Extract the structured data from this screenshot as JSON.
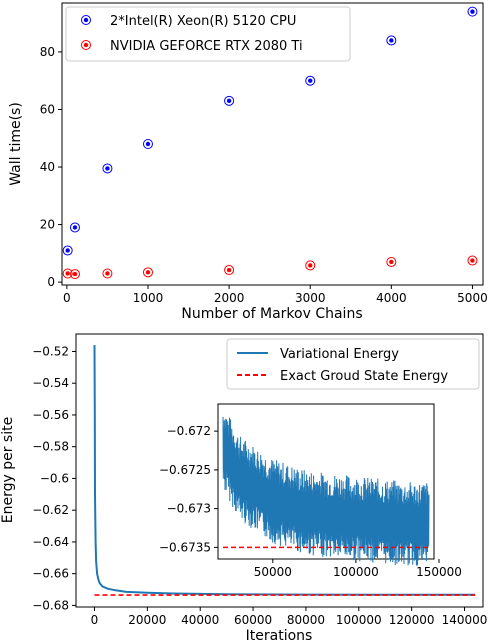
{
  "chart_data": [
    {
      "type": "scatter",
      "xlabel": "Number of Markov Chains",
      "ylabel": "Wall time(s)",
      "xlim": [
        -60,
        5130
      ],
      "ylim": [
        -1,
        97
      ],
      "xticks": [
        0,
        1000,
        2000,
        3000,
        4000,
        5000
      ],
      "yticks": [
        0,
        20,
        40,
        60,
        80
      ],
      "legend_position": "top-left",
      "series": [
        {
          "name": "2*Intel(R) Xeon(R) 5120 CPU",
          "color": "#0000ff",
          "x": [
            10,
            100,
            500,
            1000,
            2000,
            3000,
            4000,
            5000
          ],
          "y": [
            11,
            19,
            39.5,
            48,
            63,
            70,
            84,
            94
          ]
        },
        {
          "name": "NVIDIA GEFORCE RTX 2080 Ti",
          "color": "#ff0000",
          "x": [
            10,
            100,
            500,
            1000,
            2000,
            3000,
            4000,
            5000
          ],
          "y": [
            3,
            2.8,
            3,
            3.4,
            4.2,
            5.8,
            7,
            7.5
          ]
        }
      ]
    },
    {
      "type": "line",
      "xlabel": "Iterations",
      "ylabel": "Energy per site",
      "xlim": [
        -7000,
        147000
      ],
      "ylim": [
        -0.681,
        -0.509
      ],
      "xticks": [
        0,
        20000,
        40000,
        60000,
        80000,
        100000,
        120000,
        140000
      ],
      "yticks": [
        -0.68,
        -0.66,
        -0.64,
        -0.62,
        -0.6,
        -0.58,
        -0.56,
        -0.54,
        -0.52
      ],
      "legend_position": "top-right",
      "series": [
        {
          "name": "Variational Energy",
          "color": "#1f77b4",
          "x": [
            0,
            100,
            200,
            400,
            600,
            1000,
            1500,
            2000,
            3000,
            5000,
            8000,
            12000,
            20000,
            30000,
            50000,
            80000,
            110000,
            144000
          ],
          "y": [
            -0.516,
            -0.56,
            -0.61,
            -0.64,
            -0.652,
            -0.66,
            -0.664,
            -0.666,
            -0.668,
            -0.6695,
            -0.6705,
            -0.6715,
            -0.672,
            -0.6725,
            -0.673,
            -0.6732,
            -0.6733,
            -0.6733
          ]
        },
        {
          "name": "Exact Groud State Energy",
          "color": "#ff0000",
          "style": "dashed",
          "x": [
            0,
            144000
          ],
          "y": [
            -0.6735,
            -0.6735
          ]
        }
      ],
      "inset": {
        "xlim": [
          17000,
          147000
        ],
        "ylim": [
          -0.67365,
          -0.67165
        ],
        "xticks": [
          50000,
          100000,
          150000
        ],
        "yticks": [
          -0.672,
          -0.6725,
          -0.673,
          -0.6735
        ],
        "trend": {
          "x": [
            20000,
            30000,
            50000,
            70000,
            90000,
            110000,
            130000,
            144000
          ],
          "y": [
            -0.6722,
            -0.6726,
            -0.6729,
            -0.67305,
            -0.6731,
            -0.67315,
            -0.6732,
            -0.6732
          ]
        }
      }
    }
  ]
}
